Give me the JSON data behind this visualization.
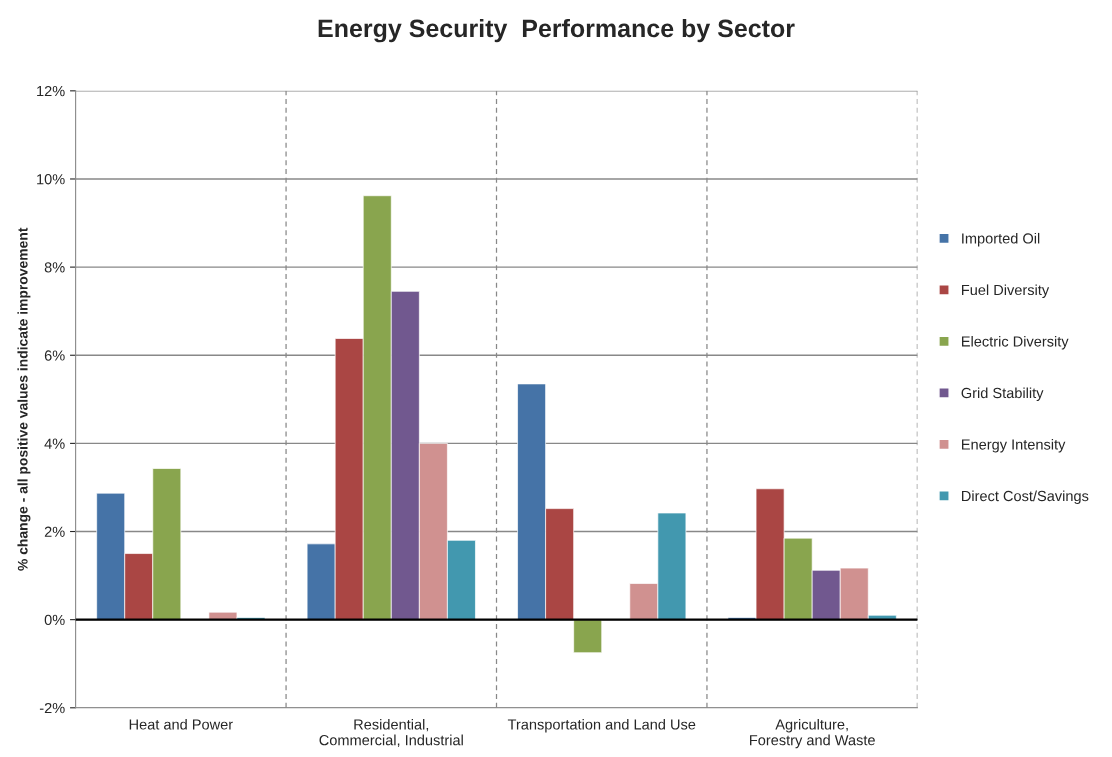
{
  "chart_data": {
    "type": "bar",
    "title": "Energy Security  Performance by Sector",
    "ylabel": "% change - all positive values indicate improvement",
    "categories": [
      "Heat and Power",
      "Residential, Commercial, Industrial",
      "Transportation and Land Use",
      "Agriculture, Forestry and Waste"
    ],
    "series": [
      {
        "name": "Imported Oil",
        "color": "#4573a7",
        "values": [
          2.87,
          1.72,
          5.35,
          0.05
        ]
      },
      {
        "name": "Fuel Diversity",
        "color": "#aa4644",
        "values": [
          1.5,
          6.38,
          2.52,
          2.97
        ]
      },
      {
        "name": "Electric Diversity",
        "color": "#89a54e",
        "values": [
          3.43,
          9.62,
          -0.75,
          1.85
        ]
      },
      {
        "name": "Grid Stability",
        "color": "#71588f",
        "values": [
          null,
          7.45,
          null,
          1.12
        ]
      },
      {
        "name": "Energy Intensity",
        "color": "#d09190",
        "values": [
          0.17,
          4.0,
          0.82,
          1.17
        ]
      },
      {
        "name": "Direct Cost/Savings",
        "color": "#4298af",
        "values": [
          0.05,
          1.8,
          2.42,
          0.1
        ]
      }
    ],
    "ylim": [
      -2,
      12
    ],
    "yticks": [
      {
        "value": -2,
        "label": "-2%"
      },
      {
        "value": 0,
        "label": "0%"
      },
      {
        "value": 2,
        "label": "2%"
      },
      {
        "value": 4,
        "label": "4%"
      },
      {
        "value": 6,
        "label": "6%"
      },
      {
        "value": 8,
        "label": "8%"
      },
      {
        "value": 10,
        "label": "10%"
      },
      {
        "value": 12,
        "label": "12%"
      }
    ],
    "grid": true,
    "legend": "right"
  }
}
